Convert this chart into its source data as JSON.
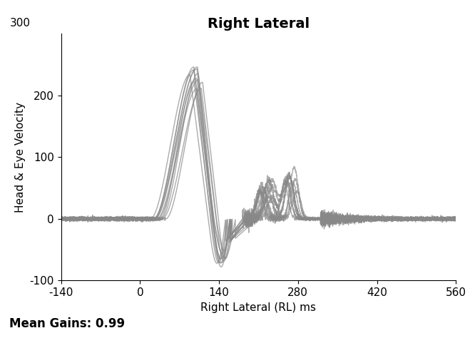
{
  "title": "Right Lateral",
  "xlabel": "Right Lateral (RL) ms",
  "ylabel": "Head & Eye Velocity",
  "xlim": [
    -140,
    560
  ],
  "ylim": [
    -100,
    300
  ],
  "xticks": [
    -140,
    0,
    140,
    280,
    420,
    560
  ],
  "yticks": [
    -100,
    0,
    100,
    200
  ],
  "ytick_300": 300,
  "line_color": "#888888",
  "line_alpha": 0.7,
  "line_width": 1.0,
  "n_traces": 12,
  "footer_text": "Mean Gains: 0.99",
  "footer_bg": "#a0a0a0",
  "footer_text_color": "#000000",
  "title_fontsize": 14,
  "label_fontsize": 11,
  "tick_fontsize": 11,
  "footer_fontsize": 12
}
